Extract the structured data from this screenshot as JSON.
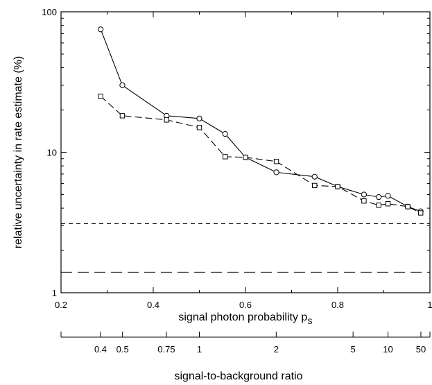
{
  "chart_data": {
    "type": "line",
    "xlabel": "signal photon probability p",
    "xlabel_subscript": "S",
    "ylabel": "relative uncertainty in rate estimate (%)",
    "secondary_xlabel": "signal-to-background ratio",
    "xlim": [
      0.2,
      1.0
    ],
    "ylim": [
      1,
      100
    ],
    "y_scale": "log",
    "x_ticks": [
      {
        "value": 0.2,
        "label": "0.2"
      },
      {
        "value": 0.4,
        "label": "0.4"
      },
      {
        "value": 0.6,
        "label": "0.6"
      },
      {
        "value": 0.8,
        "label": "0.8"
      },
      {
        "value": 1.0,
        "label": "1"
      }
    ],
    "y_ticks": [
      {
        "value": 1,
        "label": "1"
      },
      {
        "value": 10,
        "label": "10"
      },
      {
        "value": 100,
        "label": "100"
      }
    ],
    "secondary_ticks": [
      {
        "value": 0.4,
        "label": "0.4"
      },
      {
        "value": 0.5,
        "label": "0.5"
      },
      {
        "value": 0.75,
        "label": "0.75"
      },
      {
        "value": 1,
        "label": "1"
      },
      {
        "value": 2,
        "label": "2"
      },
      {
        "value": 5,
        "label": "5"
      },
      {
        "value": 10,
        "label": "10"
      },
      {
        "value": 50,
        "label": "50"
      }
    ],
    "series": [
      {
        "marker": "circle",
        "line": "solid",
        "points": [
          [
            0.286,
            75
          ],
          [
            0.333,
            30
          ],
          [
            0.429,
            18.2
          ],
          [
            0.5,
            17.4
          ],
          [
            0.556,
            13.5
          ],
          [
            0.6,
            9.2
          ],
          [
            0.667,
            7.2
          ],
          [
            0.75,
            6.7
          ],
          [
            0.8,
            5.7
          ],
          [
            0.857,
            5.0
          ],
          [
            0.889,
            4.8
          ],
          [
            0.909,
            4.9
          ],
          [
            0.952,
            4.1
          ],
          [
            0.98,
            3.8
          ]
        ]
      },
      {
        "marker": "square",
        "line": "dash",
        "points": [
          [
            0.286,
            25
          ],
          [
            0.333,
            18.2
          ],
          [
            0.429,
            17.0
          ],
          [
            0.5,
            15.0
          ],
          [
            0.556,
            9.3
          ],
          [
            0.6,
            9.2
          ],
          [
            0.667,
            8.6
          ],
          [
            0.75,
            5.8
          ],
          [
            0.8,
            5.7
          ],
          [
            0.857,
            4.5
          ],
          [
            0.889,
            4.2
          ],
          [
            0.909,
            4.3
          ],
          [
            0.952,
            4.1
          ],
          [
            0.98,
            3.7
          ]
        ]
      }
    ],
    "reference_lines": [
      {
        "y": 3.1,
        "style": "short-dash"
      },
      {
        "y": 1.4,
        "style": "long-dash"
      }
    ]
  }
}
